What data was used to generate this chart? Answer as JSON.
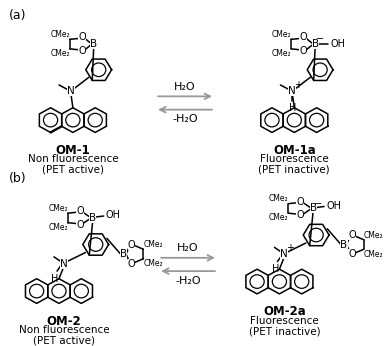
{
  "background_color": "#ffffff",
  "panel_a_label": "(a)",
  "panel_b_label": "(b)",
  "molecule_1_name": "OM-1",
  "molecule_1a_name": "OM-1a",
  "molecule_2_name": "OM-2",
  "molecule_2a_name": "OM-2a",
  "molecule_1_desc1": "Non fluorescence",
  "molecule_1_desc2": "(PET active)",
  "molecule_1a_desc1": "Fluorescence",
  "molecule_1a_desc2": "(PET inactive)",
  "molecule_2_desc1": "Non fluorescence",
  "molecule_2_desc2": "(PET active)",
  "molecule_2a_desc1": "Fluorescence",
  "molecule_2a_desc2": "(PET inactive)",
  "forward_label": "H₂O",
  "reverse_label": "-H₂O",
  "line_color": "#000000",
  "gray_color": "#999999",
  "figsize": [
    3.92,
    3.46
  ],
  "dpi": 100
}
